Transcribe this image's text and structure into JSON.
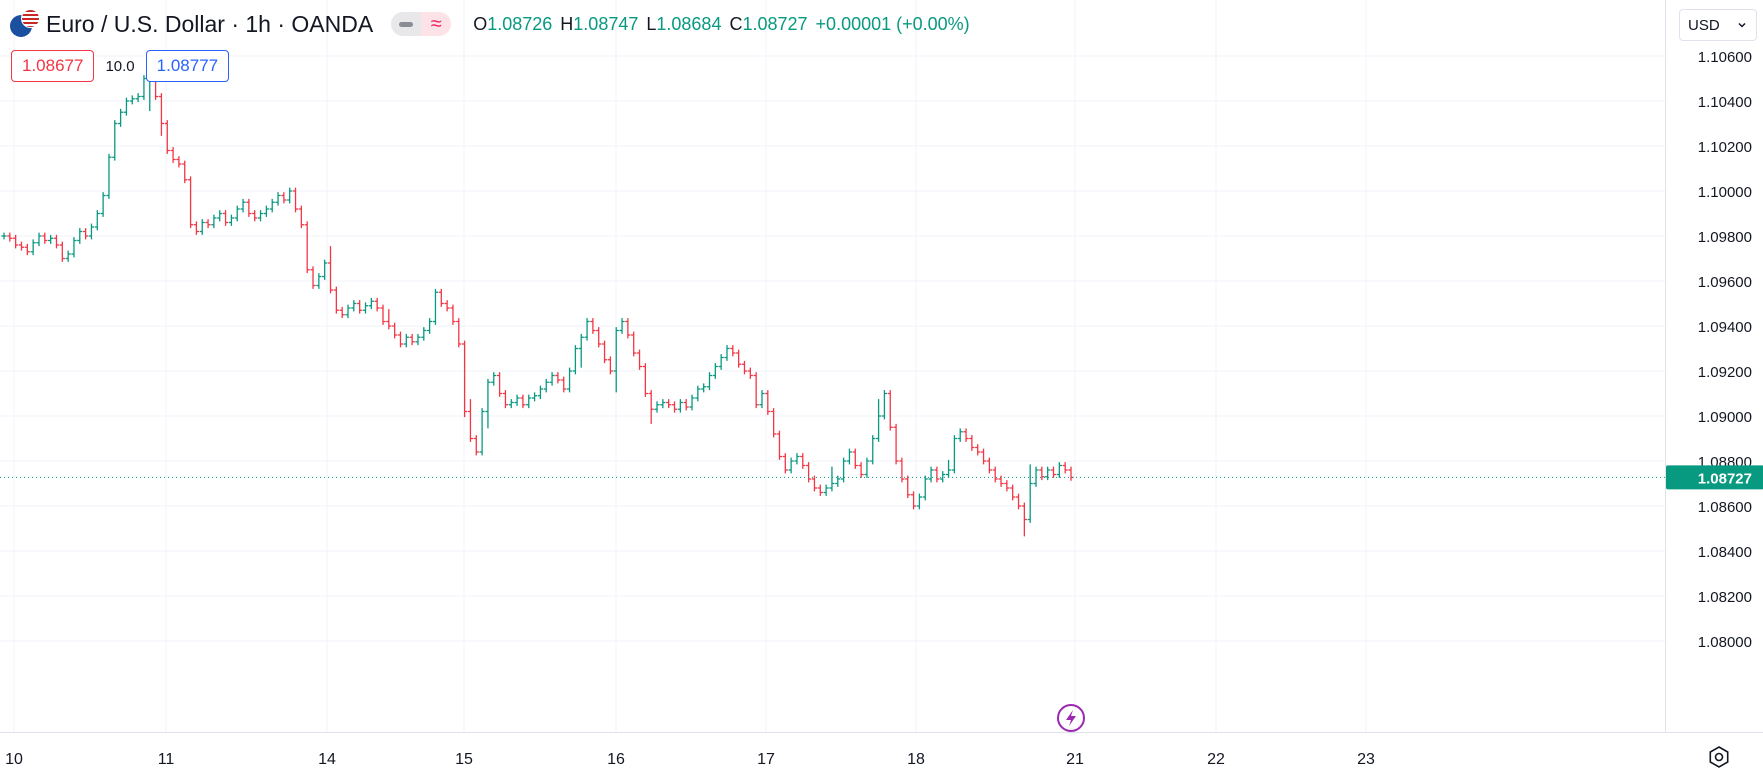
{
  "header": {
    "symbol_title": "Euro / U.S. Dollar · 1h · OANDA",
    "ohlc": {
      "o_label": "O",
      "o_value": "1.08726",
      "h_label": "H",
      "h_value": "1.08747",
      "l_label": "L",
      "l_value": "1.08684",
      "c_label": "C",
      "c_value": "1.08727",
      "change": "+0.00001 (+0.00%)"
    }
  },
  "trade": {
    "sell_price": "1.08677",
    "spread": "10.0",
    "buy_price": "1.08777"
  },
  "currency_select": {
    "value": "USD"
  },
  "last_price_label": "1.08727",
  "colors": {
    "up": "#089981",
    "down": "#f23645",
    "grid": "#f0f3fa",
    "text": "#131722",
    "event": "#9c27b0"
  },
  "icons": {
    "flag": "eur-usd-flag-icon",
    "hide": "minus-icon",
    "indicator": "approx-icon",
    "dropdown": "chevron-down-icon",
    "settings": "gear-icon",
    "event": "lightning-icon"
  },
  "chart_data": {
    "type": "ohlc",
    "symbol": "EURUSD",
    "interval": "1h",
    "y_ticks": [
      "1.10600",
      "1.10400",
      "1.10200",
      "1.10000",
      "1.09800",
      "1.09600",
      "1.09400",
      "1.09200",
      "1.09000",
      "1.08800",
      "1.08600",
      "1.08400",
      "1.08200",
      "1.08000"
    ],
    "x_ticks": [
      "10",
      "11",
      "14",
      "15",
      "16",
      "17",
      "18",
      "21",
      "22",
      "23"
    ],
    "last_price": 1.08727,
    "grid": true,
    "series": [
      {
        "name": "EURUSD",
        "closes": [
          1.098,
          1.0979,
          1.0976,
          1.0975,
          1.0973,
          1.0977,
          1.098,
          1.0978,
          1.0979,
          1.0976,
          1.097,
          1.0972,
          1.0978,
          1.0982,
          1.098,
          1.0984,
          1.099,
          1.0998,
          1.1015,
          1.103,
          1.1035,
          1.104,
          1.1041,
          1.1042,
          1.105,
          1.106,
          1.1042,
          1.103,
          1.1018,
          1.1014,
          1.1012,
          1.1005,
          1.0985,
          1.0982,
          1.0986,
          1.0985,
          1.0988,
          1.099,
          1.0986,
          1.0988,
          1.0992,
          1.0995,
          1.099,
          1.0988,
          1.099,
          1.0992,
          1.0995,
          1.0998,
          1.0996,
          1.1,
          1.0992,
          1.0985,
          1.0965,
          1.0958,
          1.0962,
          1.0968,
          1.0956,
          1.0947,
          1.0945,
          1.0948,
          1.095,
          1.0947,
          1.0949,
          1.0951,
          1.0948,
          1.0942,
          1.094,
          1.0936,
          1.0932,
          1.0935,
          1.0933,
          1.0935,
          1.0938,
          1.0942,
          1.0955,
          1.095,
          1.0948,
          1.0942,
          1.0932,
          1.0902,
          1.089,
          1.0884,
          1.0902,
          1.0915,
          1.0918,
          1.091,
          1.0905,
          1.0906,
          1.0908,
          1.0905,
          1.0908,
          1.0909,
          1.0912,
          1.0915,
          1.0918,
          1.0916,
          1.0912,
          1.092,
          1.093,
          1.0935,
          1.0942,
          1.0938,
          1.0932,
          1.0925,
          1.092,
          1.0938,
          1.0942,
          1.0936,
          1.0928,
          1.0922,
          1.091,
          1.0903,
          1.0905,
          1.0906,
          1.0905,
          1.0903,
          1.0906,
          1.0904,
          1.0908,
          1.0912,
          1.0913,
          1.0918,
          1.0922,
          1.0926,
          1.093,
          1.0928,
          1.0923,
          1.092,
          1.0918,
          1.0905,
          1.091,
          1.0902,
          1.0892,
          1.0882,
          1.0876,
          1.088,
          1.0882,
          1.0878,
          1.0872,
          1.0868,
          1.0866,
          1.0868,
          1.087,
          1.0872,
          1.088,
          1.0884,
          1.0878,
          1.0874,
          1.088,
          1.089,
          1.09,
          1.091,
          1.0895,
          1.088,
          1.0872,
          1.0865,
          1.086,
          1.0864,
          1.0872,
          1.0876,
          1.0872,
          1.0874,
          1.0876,
          1.089,
          1.0893,
          1.089,
          1.0886,
          1.0884,
          1.088,
          1.0876,
          1.0872,
          1.087,
          1.0868,
          1.0864,
          1.086,
          1.0854,
          1.087,
          1.0876,
          1.0873,
          1.0876,
          1.0874,
          1.0878,
          1.0876,
          1.08727
        ]
      }
    ]
  }
}
